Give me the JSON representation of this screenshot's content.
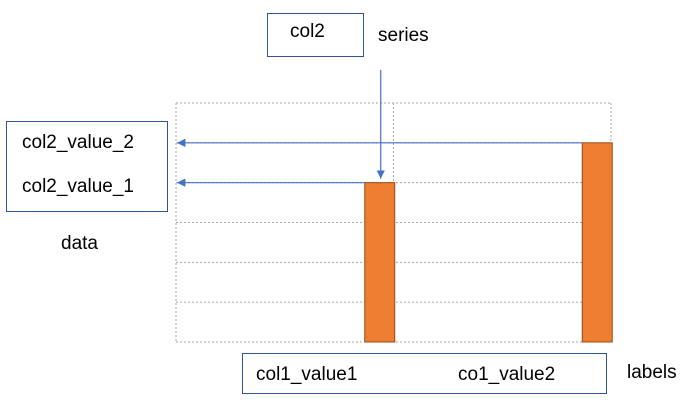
{
  "series_box": {
    "label": "col2"
  },
  "series_caption": "series",
  "data_box": {
    "values": [
      "col2_value_2",
      "col2_value_1"
    ]
  },
  "data_caption": "data",
  "labels_box": {
    "values": [
      "col1_value1",
      "co1_value2"
    ]
  },
  "labels_caption": "labels",
  "colors": {
    "bar_fill": "#ed7d31",
    "bar_edge": "#9c4a13",
    "arrow": "#4472c4",
    "box_border": "#2f5597",
    "grid": "#a6a6a6"
  },
  "chart_data": {
    "type": "bar",
    "categories": [
      "col1_value1",
      "co1_value2"
    ],
    "values": [
      4,
      5
    ],
    "ylim": [
      0,
      6
    ],
    "grid": true
  }
}
